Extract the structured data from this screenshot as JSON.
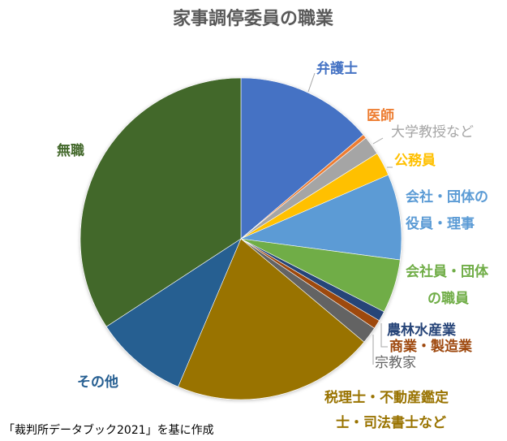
{
  "chart_data": {
    "type": "pie",
    "title": "家事調停委員の職業",
    "unit": "percent",
    "start": "top",
    "direction": "clockwise",
    "slices": [
      {
        "label": "弁護士",
        "lines": [
          "弁護士"
        ],
        "value": 13.8,
        "color": "#4472C4",
        "label_color": "#4472C4"
      },
      {
        "label": "医師",
        "lines": [
          "医師"
        ],
        "value": 0.4,
        "color": "#ED7D31",
        "label_color": "#ED7D31"
      },
      {
        "label": "大学教授など",
        "lines": [
          "大学教授など"
        ],
        "value": 1.9,
        "color": "#A5A5A5",
        "label_color": "#A5A5A5"
      },
      {
        "label": "公務員",
        "lines": [
          "公務員"
        ],
        "value": 2.4,
        "color": "#FFC000",
        "label_color": "#FFC000"
      },
      {
        "label": "会社・団体の役員・理事",
        "lines": [
          "会社・団体の",
          "役員・理事"
        ],
        "value": 8.6,
        "color": "#5B9BD5",
        "label_color": "#5B9BD5"
      },
      {
        "label": "会社員・団体の職員",
        "lines": [
          "会社員・団体",
          "の職員"
        ],
        "value": 5.4,
        "color": "#70AD47",
        "label_color": "#70AD47"
      },
      {
        "label": "農林水産業",
        "lines": [
          "農林水産業"
        ],
        "value": 1.0,
        "color": "#264478",
        "label_color": "#264478"
      },
      {
        "label": "商業・製造業",
        "lines": [
          "商業・製造業"
        ],
        "value": 0.9,
        "color": "#9E480E",
        "label_color": "#9E480E"
      },
      {
        "label": "宗教家",
        "lines": [
          "宗教家"
        ],
        "value": 1.7,
        "color": "#636363",
        "label_color": "#636363"
      },
      {
        "label": "税理士・不動産鑑定士・司法書士など",
        "lines": [
          "税理士・不動産鑑定",
          "士・司法書士など"
        ],
        "value": 20.3,
        "color": "#997300",
        "label_color": "#997300"
      },
      {
        "label": "その他",
        "lines": [
          "その他"
        ],
        "value": 9.4,
        "color": "#255E91",
        "label_color": "#255E91"
      },
      {
        "label": "無職",
        "lines": [
          "無職"
        ],
        "value": 34.2,
        "color": "#43682B",
        "label_color": "#43682B"
      }
    ],
    "legend": "none",
    "data_labels": "category names outside with leader lines"
  },
  "source": "「裁判所データブック2021」を基に作成"
}
